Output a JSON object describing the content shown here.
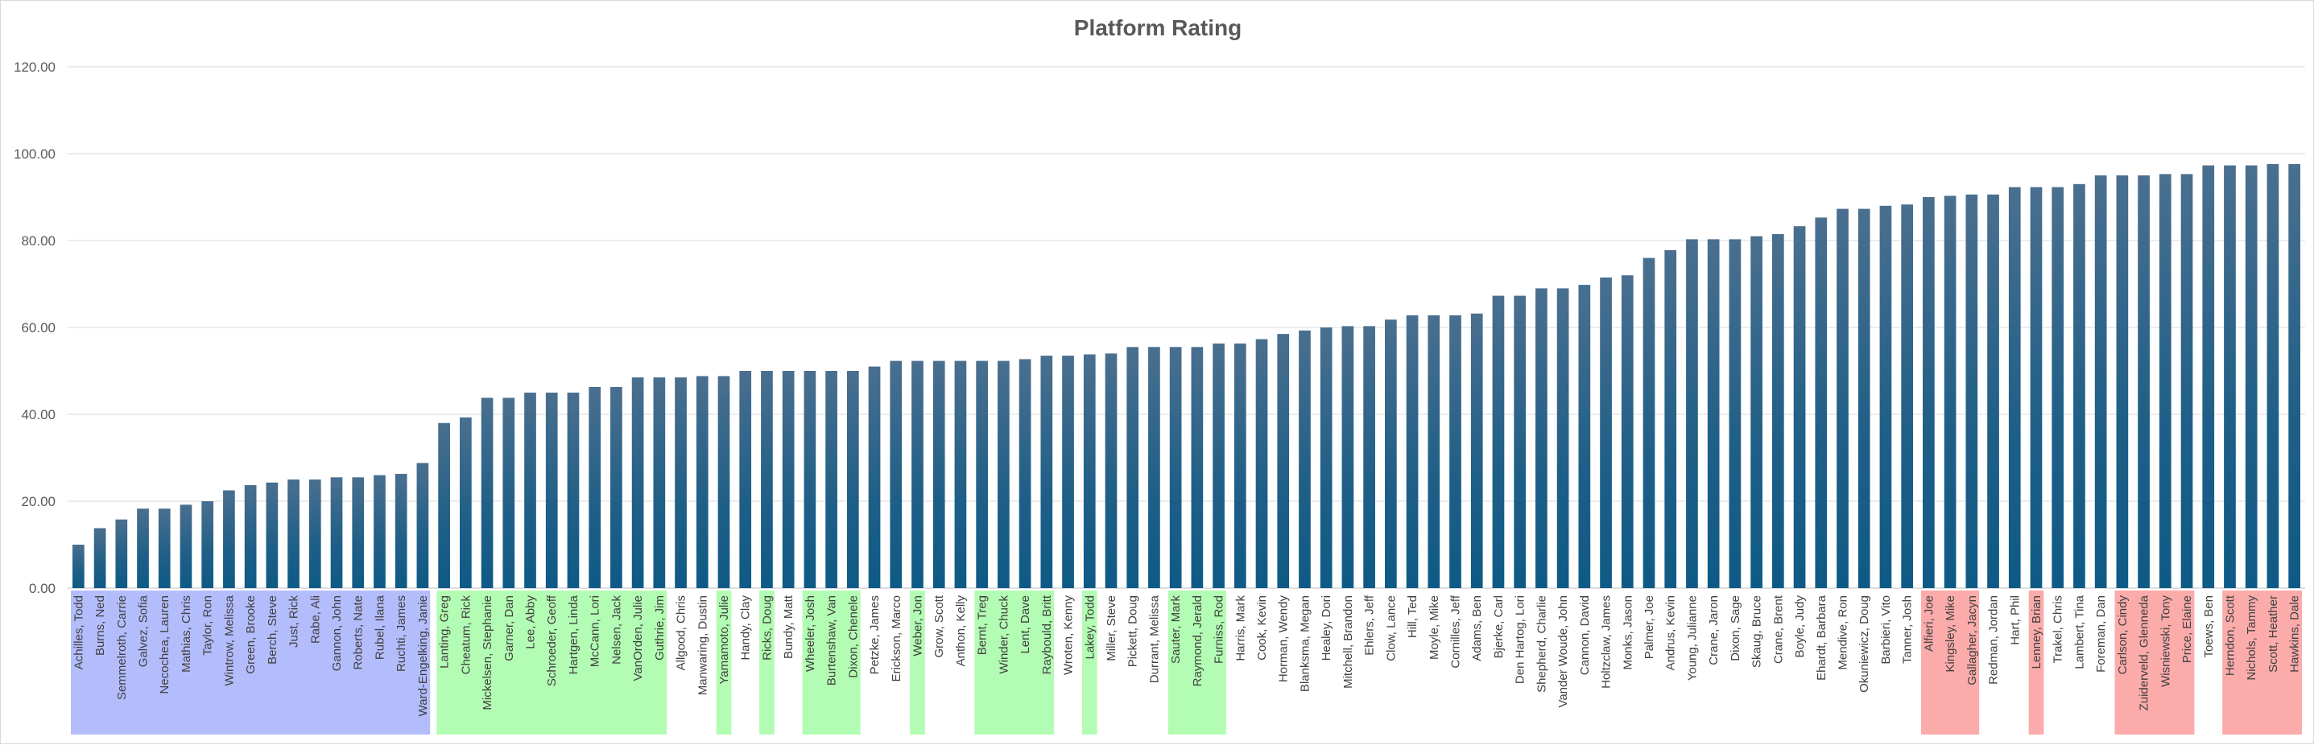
{
  "chart_data": {
    "type": "bar",
    "title": "Platform Rating",
    "xlabel": "",
    "ylabel": "",
    "ylim": [
      0,
      120
    ],
    "yticks": [
      "0.00",
      "20.00",
      "40.00",
      "60.00",
      "80.00",
      "100.00",
      "120.00"
    ],
    "grid": true,
    "legend": "none",
    "bar_color": "#1f5f87",
    "group_colors": {
      "blue": "#b4bdfc",
      "green": "#b3fcb3",
      "red": "#fcabab"
    },
    "categories": [
      "Achilles, Todd",
      "Burns, Ned",
      "Semmelroth, Carrie",
      "Galvez, Sofia",
      "Necochea, Lauren",
      "Mathias, Chris",
      "Taylor, Ron",
      "Wintrow, Melissa",
      "Green, Brooke",
      "Berch, Steve",
      "Just, Rick",
      "Rabe, Ali",
      "Gannon, John",
      "Roberts, Nate",
      "Rubel, Ilana",
      "Ruchti, James",
      "Ward-Engelking, Janie",
      "Lanting, Greg",
      "Cheatum, Rick",
      "Mickelsen, Stephanie",
      "Garner, Dan",
      "Lee, Abby",
      "Schroeder, Geoff",
      "Hartgen, Linda",
      "McCann, Lori",
      "Nelsen, Jack",
      "VanOrden, Julie",
      "Guthrie, Jim",
      "Allgood, Chris",
      "Manwaring, Dustin",
      "Yamamoto, Julie",
      "Handy, Clay",
      "Ricks, Doug",
      "Bundy, Matt",
      "Wheeler, Josh",
      "Burtenshaw, Van",
      "Dixon, Chenele",
      "Petzke, James",
      "Erickson, Marco",
      "Weber, Jon",
      "Grow, Scott",
      "Anthon, Kelly",
      "Bernt, Treg",
      "Winder, Chuck",
      "Lent, Dave",
      "Raybould, Britt",
      "Wroten, Kenny",
      "Lakey, Todd",
      "Miller, Steve",
      "Pickett, Doug",
      "Durrant, Melissa",
      "Sauter, Mark",
      "Raymond, Jerald",
      "Furniss, Rod",
      "Harris, Mark",
      "Cook, Kevin",
      "Horman, Wendy",
      "Blanksma, Megan",
      "Healey, Dori",
      "Mitchell, Brandon",
      "Ehlers, Jeff",
      "Clow, Lance",
      "Hill, Ted",
      "Moyle, Mike",
      "Cornilles, Jeff",
      "Adams, Ben",
      "Bjerke, Carl",
      "Den Hartog, Lori",
      "Shepherd, Charlie",
      "Vander Woude, John",
      "Cannon, David",
      "Holtzclaw, James",
      "Monks, Jason",
      "Palmer, Joe",
      "Andrus, Kevin",
      "Young, Julianne",
      "Crane, Jaron",
      "Dixon, Sage",
      "Skaug, Bruce",
      "Crane, Brent",
      "Boyle, Judy",
      "Ehardt, Barbara",
      "Mendive, Ron",
      "Okuniewicz, Doug",
      "Barbieri, Vito",
      "Tanner, Josh",
      "Alfieri, Joe",
      "Kingsley, Mike",
      "Gallagher, Jacyn",
      "Redman, Jordan",
      "Hart, Phil",
      "Lenney, Brian",
      "Trakel, Chris",
      "Lambert, Tina",
      "Foreman, Dan",
      "Carlson, Cindy",
      "Zuiderveld, Glenneda",
      "Wisniewski, Tony",
      "Price, Elaine",
      "Toews, Ben",
      "Herndon, Scott",
      "Nichols, Tammy",
      "Scott, Heather",
      "Hawkins, Dale"
    ],
    "values": [
      10.0,
      13.8,
      15.8,
      18.3,
      18.3,
      19.2,
      20.0,
      22.5,
      23.7,
      24.3,
      25.0,
      25.0,
      25.5,
      25.5,
      26.0,
      26.3,
      28.8,
      38.0,
      39.3,
      43.8,
      43.8,
      45.0,
      45.0,
      45.0,
      46.3,
      46.3,
      48.5,
      48.5,
      48.5,
      48.8,
      48.8,
      50.0,
      50.0,
      50.0,
      50.0,
      50.0,
      50.0,
      51.0,
      52.3,
      52.3,
      52.3,
      52.3,
      52.3,
      52.3,
      52.7,
      53.5,
      53.5,
      53.8,
      54.0,
      55.5,
      55.5,
      55.5,
      55.5,
      56.3,
      56.3,
      57.3,
      58.5,
      59.3,
      60.0,
      60.3,
      60.3,
      61.8,
      62.8,
      62.8,
      62.8,
      63.2,
      67.3,
      67.3,
      69.0,
      69.0,
      69.8,
      71.5,
      72.0,
      76.0,
      77.8,
      80.3,
      80.3,
      80.3,
      81.0,
      81.5,
      83.3,
      85.3,
      87.3,
      87.3,
      88.0,
      88.3,
      90.0,
      90.3,
      90.6,
      90.6,
      92.3,
      92.3,
      92.3,
      93.0,
      95.0,
      95.0,
      95.0,
      95.3,
      95.3,
      97.3,
      97.3,
      97.3,
      97.6,
      97.6
    ],
    "label_groups": [
      "blue",
      "blue",
      "blue",
      "blue",
      "blue",
      "blue",
      "blue",
      "blue",
      "blue",
      "blue",
      "blue",
      "blue",
      "blue",
      "blue",
      "blue",
      "blue",
      "blue",
      "green",
      "green",
      "green",
      "green",
      "green",
      "green",
      "green",
      "green",
      "green",
      "green",
      "green",
      "none",
      "none",
      "green",
      "none",
      "green",
      "none",
      "green",
      "green",
      "green",
      "none",
      "none",
      "green",
      "none",
      "none",
      "green",
      "green",
      "green",
      "green",
      "none",
      "green",
      "none",
      "none",
      "none",
      "green",
      "green",
      "green",
      "none",
      "none",
      "none",
      "none",
      "none",
      "none",
      "none",
      "none",
      "none",
      "none",
      "none",
      "none",
      "none",
      "none",
      "none",
      "none",
      "none",
      "none",
      "none",
      "none",
      "none",
      "none",
      "none",
      "none",
      "none",
      "none",
      "none",
      "none",
      "none",
      "none",
      "none",
      "none",
      "red",
      "red",
      "red",
      "none",
      "none",
      "red",
      "none",
      "none",
      "none",
      "red",
      "red",
      "red",
      "red",
      "none",
      "red",
      "red",
      "red",
      "red"
    ]
  }
}
